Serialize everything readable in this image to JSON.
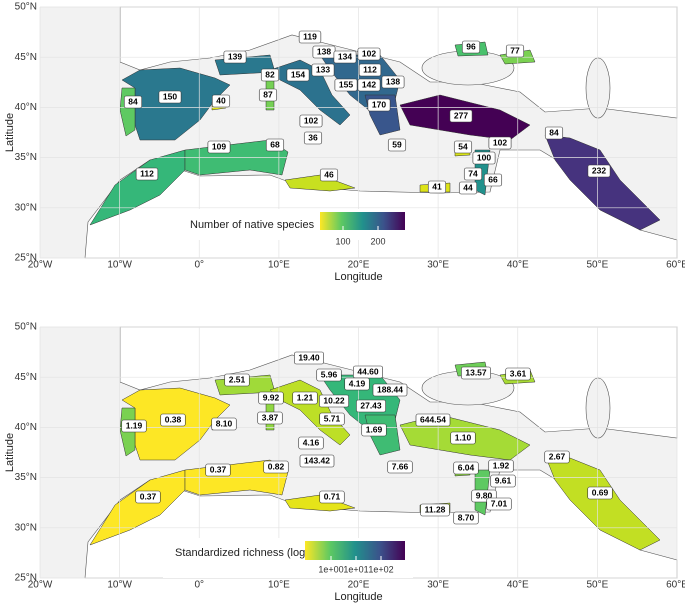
{
  "x_axis": {
    "label": "Longitude",
    "ticks": [
      "20°W",
      "10°W",
      "0°",
      "10°E",
      "20°E",
      "30°E",
      "40°E",
      "50°E",
      "60°E"
    ]
  },
  "y_axis": {
    "label": "Latitude",
    "ticks": [
      "50°N",
      "45°N",
      "40°N",
      "35°N",
      "30°N",
      "25°N"
    ]
  },
  "panels": [
    {
      "legend_title": "Number of native species",
      "legend_ticks": [
        100,
        200
      ],
      "labels": [
        119,
        138,
        139,
        134,
        102,
        133,
        112,
        82,
        154,
        155,
        142,
        138,
        150,
        84,
        40,
        87,
        170,
        277,
        102,
        36,
        96,
        77,
        84,
        109,
        68,
        59,
        54,
        102,
        100,
        112,
        46,
        74,
        66,
        41,
        44,
        232
      ]
    },
    {
      "legend_title": "Standardized richness (log10)",
      "legend_ticks": [
        {
          "value": 1,
          "label": "1e+00"
        },
        {
          "value": 10,
          "label": "1e+01"
        },
        {
          "value": 100,
          "label": "1e+02"
        }
      ],
      "labels": [
        {
          "value": 19.4,
          "label": "19.40"
        },
        5.96,
        {
          "value": 44.6,
          "label": "44.60"
        },
        4.19,
        2.51,
        188.44,
        9.92,
        1.21,
        10.22,
        27.43,
        0.38,
        1.19,
        644.54,
        {
          "value": 8.1,
          "label": "8.10"
        },
        3.87,
        5.71,
        1.69,
        4.16,
        143.42,
        {
          "value": 1.1,
          "label": "1.10"
        },
        13.57,
        3.61,
        2.67,
        0.37,
        0.82,
        7.66,
        6.04,
        1.92,
        9.61,
        0.37,
        0.71,
        {
          "value": 9.8,
          "label": "9.80"
        },
        7.01,
        11.28,
        {
          "value": 8.7,
          "label": "8.70"
        },
        0.69
      ]
    }
  ]
}
